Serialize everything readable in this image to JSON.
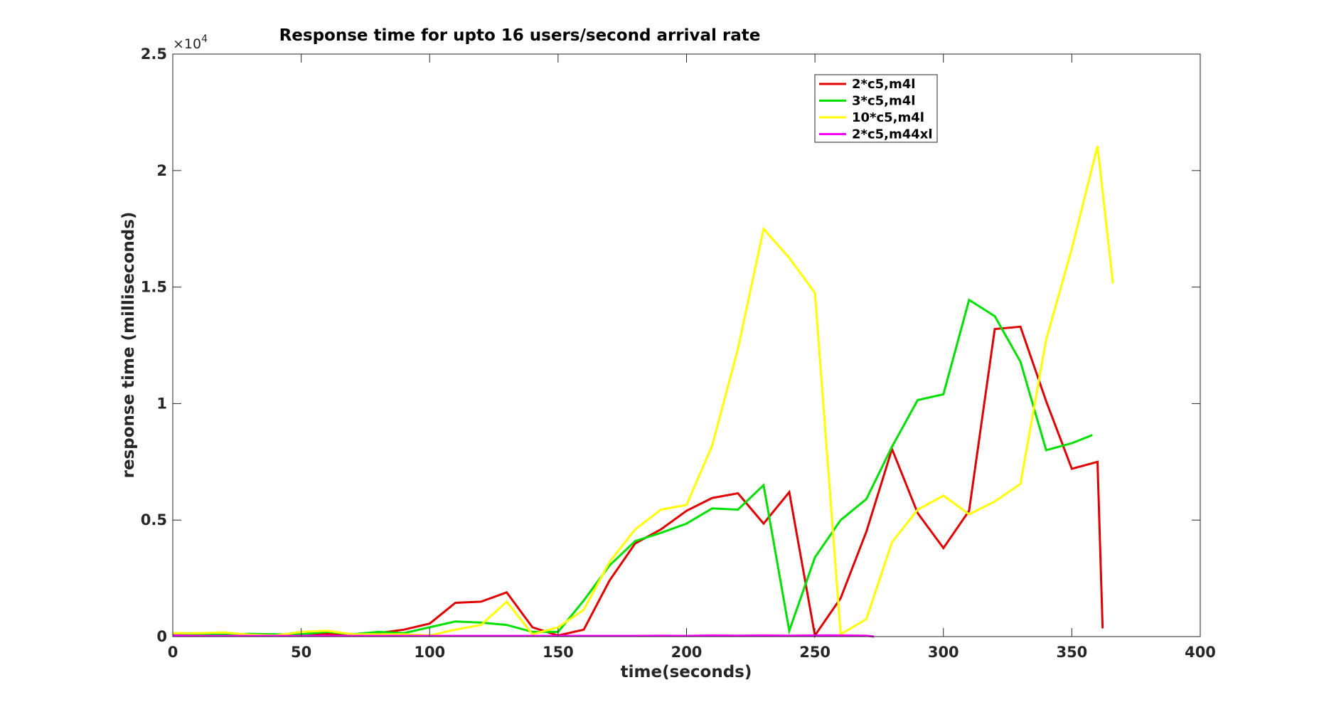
{
  "chart_data": {
    "type": "line",
    "title": "Response time for upto 16 users/second arrival rate",
    "xlabel": "time(seconds)",
    "ylabel": "response time (milliseconds)",
    "y_exponent_label": "×10",
    "y_exponent_power": "4",
    "xlim": [
      0,
      400
    ],
    "ylim": [
      0,
      25000
    ],
    "x_ticks": [
      0,
      50,
      100,
      150,
      200,
      250,
      300,
      350,
      400
    ],
    "x_tick_labels": [
      "0",
      "50",
      "100",
      "150",
      "200",
      "250",
      "300",
      "350",
      "400"
    ],
    "y_ticks": [
      0,
      5000,
      10000,
      15000,
      20000,
      25000
    ],
    "y_tick_labels": [
      "0",
      "0.5",
      "1",
      "1.5",
      "2",
      "2.5"
    ],
    "grid": false,
    "legend_position": "top-right",
    "series": [
      {
        "name": "2*c5,m4l",
        "color": "#e00000",
        "x": [
          0,
          10,
          20,
          30,
          40,
          50,
          60,
          70,
          80,
          90,
          100,
          110,
          120,
          130,
          140,
          150,
          160,
          170,
          180,
          190,
          200,
          210,
          220,
          230,
          240,
          250,
          260,
          270,
          280,
          290,
          300,
          310,
          320,
          330,
          340,
          350,
          360,
          362
        ],
        "y": [
          100,
          50,
          50,
          80,
          50,
          60,
          120,
          60,
          150,
          300,
          560,
          1450,
          1500,
          1900,
          400,
          50,
          300,
          2400,
          4000,
          4600,
          5400,
          5950,
          6150,
          4850,
          6200,
          50,
          1650,
          4500,
          8050,
          5300,
          3800,
          5400,
          13200,
          13300,
          10100,
          7200,
          7500,
          350
        ]
      },
      {
        "name": "3*c5,m4l",
        "color": "#00e000",
        "x": [
          0,
          10,
          20,
          30,
          40,
          50,
          60,
          70,
          80,
          90,
          100,
          110,
          120,
          130,
          140,
          150,
          160,
          170,
          180,
          190,
          200,
          210,
          220,
          230,
          240,
          250,
          260,
          270,
          280,
          290,
          300,
          310,
          320,
          330,
          340,
          350,
          358
        ],
        "y": [
          150,
          100,
          80,
          120,
          100,
          100,
          200,
          100,
          200,
          150,
          400,
          650,
          600,
          500,
          200,
          200,
          1550,
          3050,
          4100,
          4450,
          4850,
          5500,
          5450,
          6500,
          250,
          3400,
          5000,
          5900,
          8150,
          10150,
          10400,
          14450,
          13750,
          11800,
          8000,
          8300,
          8650
        ]
      },
      {
        "name": "10*c5,m4l",
        "color": "#ffff00",
        "x": [
          0,
          10,
          20,
          30,
          40,
          50,
          60,
          70,
          80,
          90,
          100,
          110,
          120,
          130,
          140,
          150,
          160,
          170,
          180,
          190,
          200,
          210,
          220,
          230,
          240,
          250,
          260,
          270,
          280,
          290,
          300,
          310,
          320,
          330,
          340,
          350,
          360,
          366
        ],
        "y": [
          150,
          150,
          180,
          80,
          50,
          200,
          250,
          100,
          100,
          100,
          50,
          300,
          500,
          1500,
          100,
          400,
          1150,
          3200,
          4600,
          5450,
          5650,
          8200,
          12350,
          17500,
          16250,
          14750,
          100,
          750,
          4050,
          5450,
          6050,
          5250,
          5800,
          6550,
          12750,
          16650,
          21050,
          15150
        ]
      },
      {
        "name": "2*c5,m44xl",
        "color": "#ff00ff",
        "x": [
          0,
          10,
          20,
          30,
          40,
          50,
          60,
          70,
          80,
          90,
          100,
          110,
          120,
          130,
          140,
          150,
          160,
          170,
          180,
          190,
          200,
          210,
          220,
          230,
          240,
          250,
          260,
          270,
          273
        ],
        "y": [
          50,
          30,
          30,
          30,
          30,
          30,
          30,
          30,
          30,
          30,
          30,
          30,
          30,
          30,
          30,
          30,
          30,
          30,
          30,
          40,
          30,
          50,
          40,
          50,
          40,
          50,
          50,
          40,
          0
        ]
      }
    ]
  }
}
